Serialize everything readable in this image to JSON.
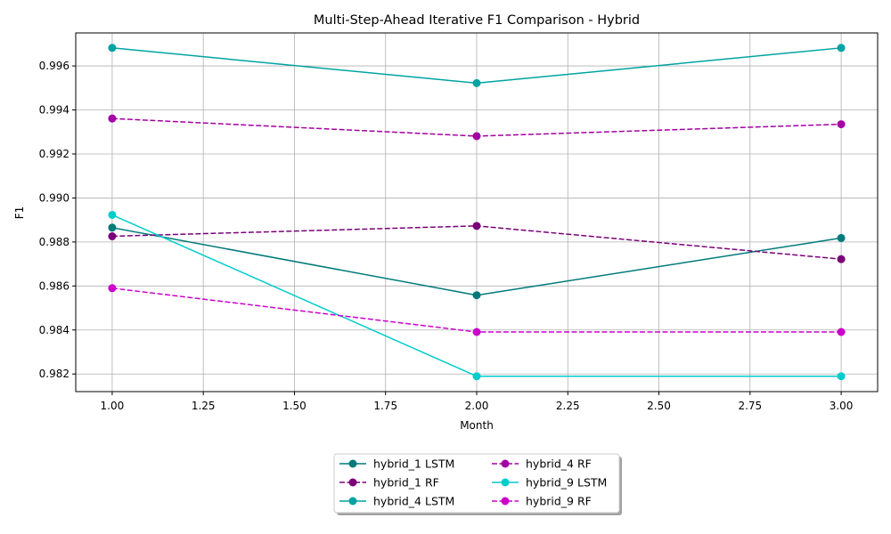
{
  "chart_data": {
    "type": "line",
    "title": "Multi-Step-Ahead Iterative F1 Comparison - Hybrid",
    "xlabel": "Month",
    "ylabel": "F1",
    "xlim": [
      0.9,
      3.1
    ],
    "ylim": [
      0.9812,
      0.9975
    ],
    "xticks": [
      "1.00",
      "1.25",
      "1.50",
      "1.75",
      "2.00",
      "2.25",
      "2.50",
      "2.75",
      "3.00"
    ],
    "yticks": [
      "0.982",
      "0.984",
      "0.986",
      "0.988",
      "0.990",
      "0.992",
      "0.994",
      "0.996"
    ],
    "grid": true,
    "legend_position": "bottom-center",
    "x": [
      1,
      2,
      3
    ],
    "series": [
      {
        "name": "hybrid_1 LSTM",
        "values": [
          0.98865,
          0.98558,
          0.98818
        ],
        "color": "#007a7a",
        "dash": "solid"
      },
      {
        "name": "hybrid_1 RF",
        "values": [
          0.98826,
          0.98873,
          0.98722
        ],
        "color": "#7a007a",
        "dash": "dashed"
      },
      {
        "name": "hybrid_4 LSTM",
        "values": [
          0.99682,
          0.99522,
          0.99682
        ],
        "color": "#00a3a3",
        "dash": "solid"
      },
      {
        "name": "hybrid_4 RF",
        "values": [
          0.99361,
          0.99281,
          0.99335
        ],
        "color": "#a300a3",
        "dash": "dashed"
      },
      {
        "name": "hybrid_9 LSTM",
        "values": [
          0.98923,
          0.9819,
          0.9819
        ],
        "color": "#00cccc",
        "dash": "solid"
      },
      {
        "name": "hybrid_9 RF",
        "values": [
          0.9859,
          0.98391,
          0.98391
        ],
        "color": "#cc00cc",
        "dash": "dashed"
      }
    ]
  }
}
